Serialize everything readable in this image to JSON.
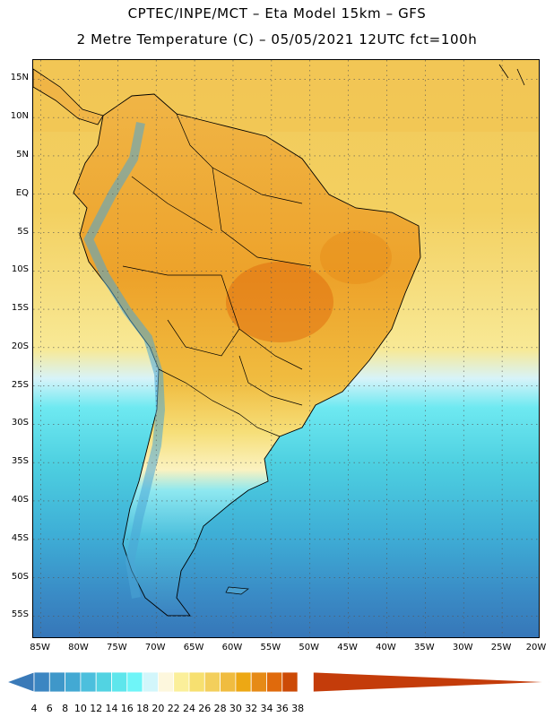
{
  "header": {
    "line1": "CPTEC/INPE/MCT –  Eta Model 15km – GFS",
    "line2": "2 Metre Temperature (C) – 05/05/2021 12UTC fct=100h"
  },
  "map": {
    "lat_labels": [
      "15N",
      "10N",
      "5N",
      "EQ",
      "5S",
      "10S",
      "15S",
      "20S",
      "25S",
      "30S",
      "35S",
      "40S",
      "45S",
      "50S",
      "55S"
    ],
    "lat_values": [
      15,
      10,
      5,
      0,
      -5,
      -10,
      -15,
      -20,
      -25,
      -30,
      -35,
      -40,
      -45,
      -50,
      -55
    ],
    "lon_labels": [
      "85W",
      "80W",
      "75W",
      "70W",
      "65W",
      "60W",
      "55W",
      "50W",
      "45W",
      "40W",
      "35W",
      "30W",
      "25W",
      "20W"
    ],
    "lon_values": [
      -85,
      -80,
      -75,
      -70,
      -65,
      -60,
      -55,
      -50,
      -45,
      -40,
      -35,
      -30,
      -25,
      -20
    ],
    "lat_range": [
      -58,
      17.5
    ],
    "lon_range": [
      -86,
      -20
    ]
  },
  "colorbar": {
    "labels": [
      "4",
      "6",
      "8",
      "10",
      "12",
      "14",
      "16",
      "18",
      "20",
      "22",
      "24",
      "26",
      "28",
      "30",
      "32",
      "34",
      "36",
      "38"
    ],
    "colors": [
      "#3a7ab8",
      "#3c86c2",
      "#3f97c9",
      "#43a9d3",
      "#4cbfdd",
      "#52d3e2",
      "#5ee6ec",
      "#6ff5f8",
      "#d2f6fb",
      "#fdf7dd",
      "#fbef9a",
      "#f7e070",
      "#f3cf5c",
      "#f0bc40",
      "#eda814",
      "#e68a16",
      "#e06a0c",
      "#cc4a06",
      "#c43c0a"
    ]
  }
}
